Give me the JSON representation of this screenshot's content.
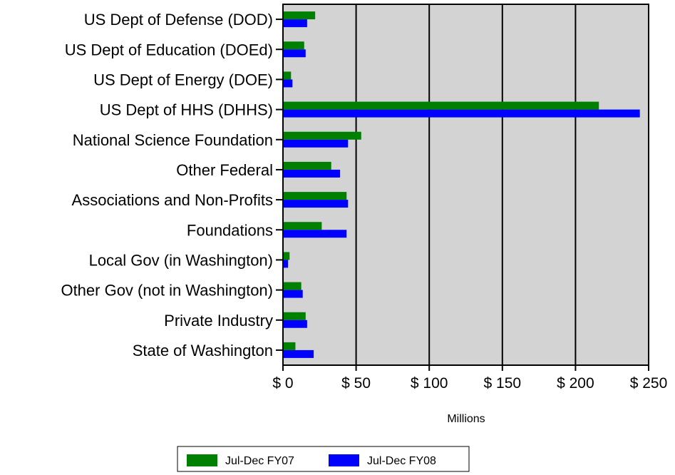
{
  "chart_data": {
    "type": "bar",
    "orientation": "horizontal",
    "title": "",
    "xlabel": "Millions",
    "ylabel": "",
    "xlim": [
      0,
      250
    ],
    "x_ticks": [
      0,
      50,
      100,
      150,
      200,
      250
    ],
    "x_tick_labels": [
      "$ 0",
      "$ 50",
      "$ 100",
      "$ 150",
      "$ 200",
      "$ 250"
    ],
    "grid": "vertical",
    "legend_position": "bottom-center",
    "categories": [
      "US Dept of Defense (DOD)",
      "US Dept of Education (DOEd)",
      "US Dept of Energy (DOE)",
      "US Dept of HHS (DHHS)",
      "National Science Foundation",
      "Other Federal",
      "Associations and Non-Profits",
      "Foundations",
      "Local Gov (in Washington)",
      "Other Gov (not in Washington)",
      "Private Industry",
      "State of Washington"
    ],
    "series": [
      {
        "name": "Jul-Dec FY07",
        "color": "#008000",
        "values": [
          22,
          14.5,
          5.5,
          216,
          53.5,
          33,
          43.5,
          26.5,
          4.5,
          12.5,
          15.5,
          8.5
        ]
      },
      {
        "name": "Jul-Dec FY08",
        "color": "#0000ff",
        "values": [
          16.5,
          15.5,
          6.5,
          244,
          44.5,
          39,
          44.5,
          43.5,
          3.5,
          13.5,
          16.5,
          21
        ]
      }
    ],
    "plot_background": "#d3d3d3"
  }
}
